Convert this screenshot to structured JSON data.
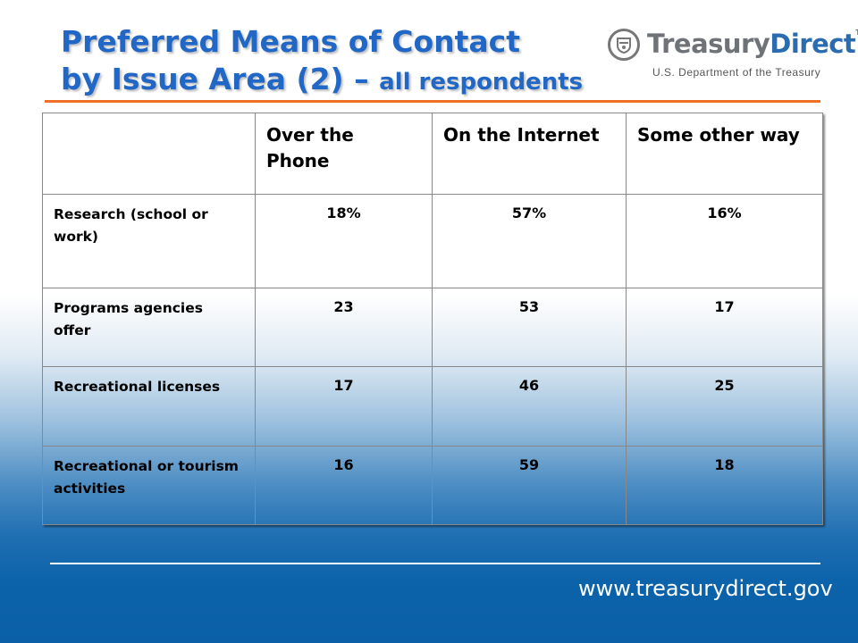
{
  "title": {
    "line1": "Preferred Means of Contact",
    "line2_main": "by Issue Area (2) – ",
    "line2_small": "all respondents"
  },
  "logo": {
    "brand_part1": "Treasury",
    "brand_part2": "Direct",
    "trademark": "TM",
    "subtitle": "U.S. Department of the Treasury",
    "icon": "treasury-seal-icon"
  },
  "table": {
    "columns": [
      "",
      "Over the Phone",
      "On the Internet",
      "Some other way"
    ],
    "rows": [
      {
        "label": "Research (school or work)",
        "values": [
          "18%",
          "57%",
          "16%"
        ]
      },
      {
        "label": "Programs agencies offer",
        "values": [
          "23",
          "53",
          "17"
        ]
      },
      {
        "label": "Recreational licenses",
        "values": [
          "17",
          "46",
          "25"
        ]
      },
      {
        "label": "Recreational or tourism activities",
        "values": [
          "16",
          "59",
          "18"
        ]
      }
    ]
  },
  "footer": {
    "url": "www.treasurydirect.gov"
  },
  "colors": {
    "title": "#2167c6",
    "accent_rule": "#ef6f27",
    "background_bottom": "#0a5fa6"
  }
}
